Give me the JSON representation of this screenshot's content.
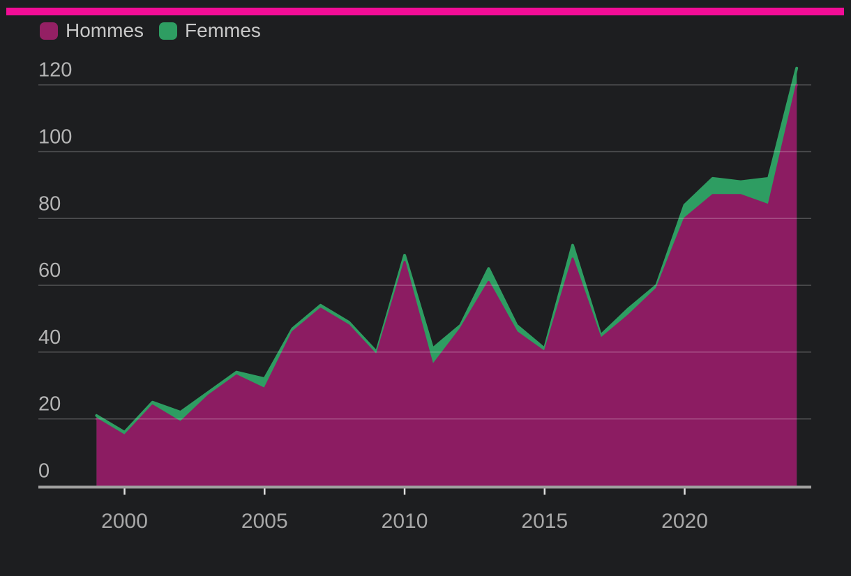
{
  "legend": {
    "items": [
      {
        "label": "Hommes",
        "color": "#942064"
      },
      {
        "label": "Femmes",
        "color": "#2e9d62"
      }
    ]
  },
  "colors": {
    "background": "#1d1e20",
    "accent_bar": "#f20d96",
    "hommes_fill": "#8c1c62",
    "femmes_fill": "#2e9d62",
    "gridline": "rgba(255,255,255,0.22)",
    "axis_line": "#9e9e9e",
    "tick_mark": "#e0e0e0",
    "y_label_color": "#b4b4b4",
    "x_label_color": "#a8a8a8"
  },
  "chart_data": {
    "type": "area",
    "stacked": true,
    "title": "",
    "xlabel": "",
    "ylabel": "",
    "x": [
      1999,
      2000,
      2001,
      2002,
      2003,
      2004,
      2005,
      2006,
      2007,
      2008,
      2009,
      2010,
      2011,
      2012,
      2013,
      2014,
      2015,
      2016,
      2017,
      2018,
      2019,
      2020,
      2021,
      2022,
      2023,
      2024
    ],
    "series": [
      {
        "name": "Hommes",
        "color": "#8c1c62",
        "values": [
          20,
          15,
          24,
          19,
          27,
          33,
          29,
          46,
          53,
          48,
          39,
          67,
          36,
          47,
          61,
          46,
          40,
          68,
          44,
          51,
          59,
          80,
          87,
          87,
          84,
          120
        ]
      },
      {
        "name": "Femmes",
        "color": "#2e9d62",
        "values": [
          1,
          1,
          1,
          3,
          1,
          1,
          3,
          1,
          1,
          1,
          1,
          2,
          5,
          1,
          4,
          2,
          1,
          4,
          1,
          2,
          1,
          4,
          5,
          4,
          8,
          5
        ]
      }
    ],
    "xticks": [
      2000,
      2005,
      2010,
      2015,
      2020
    ],
    "yticks": [
      0,
      20,
      40,
      60,
      80,
      100,
      120
    ],
    "ylim": [
      0,
      120
    ],
    "grid": true,
    "legend_position": "top-left"
  }
}
